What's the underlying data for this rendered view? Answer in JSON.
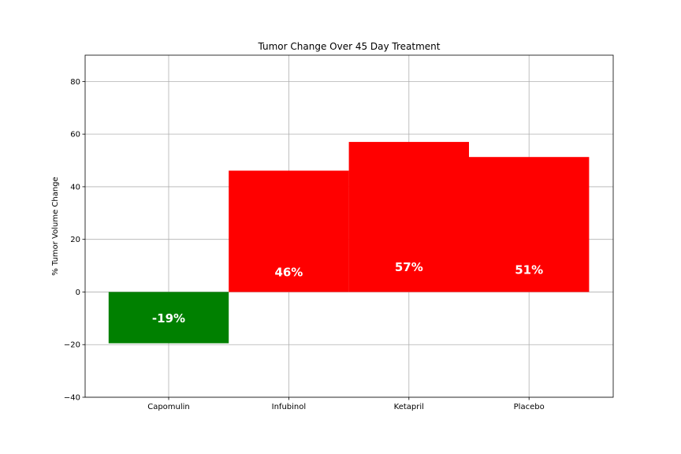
{
  "chart_data": {
    "type": "bar",
    "title": "Tumor Change Over 45 Day Treatment",
    "xlabel": "",
    "ylabel": "% Tumor Volume Change",
    "categories": [
      "Capomulin",
      "Infubinol",
      "Ketapril",
      "Placebo"
    ],
    "values": [
      -19.48,
      46.12,
      57.03,
      51.3
    ],
    "data_labels": [
      "-19%",
      "46%",
      "57%",
      "51%"
    ],
    "colors": [
      "#008000",
      "#ff0000",
      "#ff0000",
      "#ff0000"
    ],
    "ylim": [
      -40,
      90
    ],
    "yticks": [
      -40,
      -20,
      0,
      20,
      40,
      60,
      80
    ],
    "ytick_labels": [
      "−40",
      "−20",
      "0",
      "20",
      "40",
      "60",
      "80"
    ],
    "grid": true,
    "legend": "none"
  }
}
